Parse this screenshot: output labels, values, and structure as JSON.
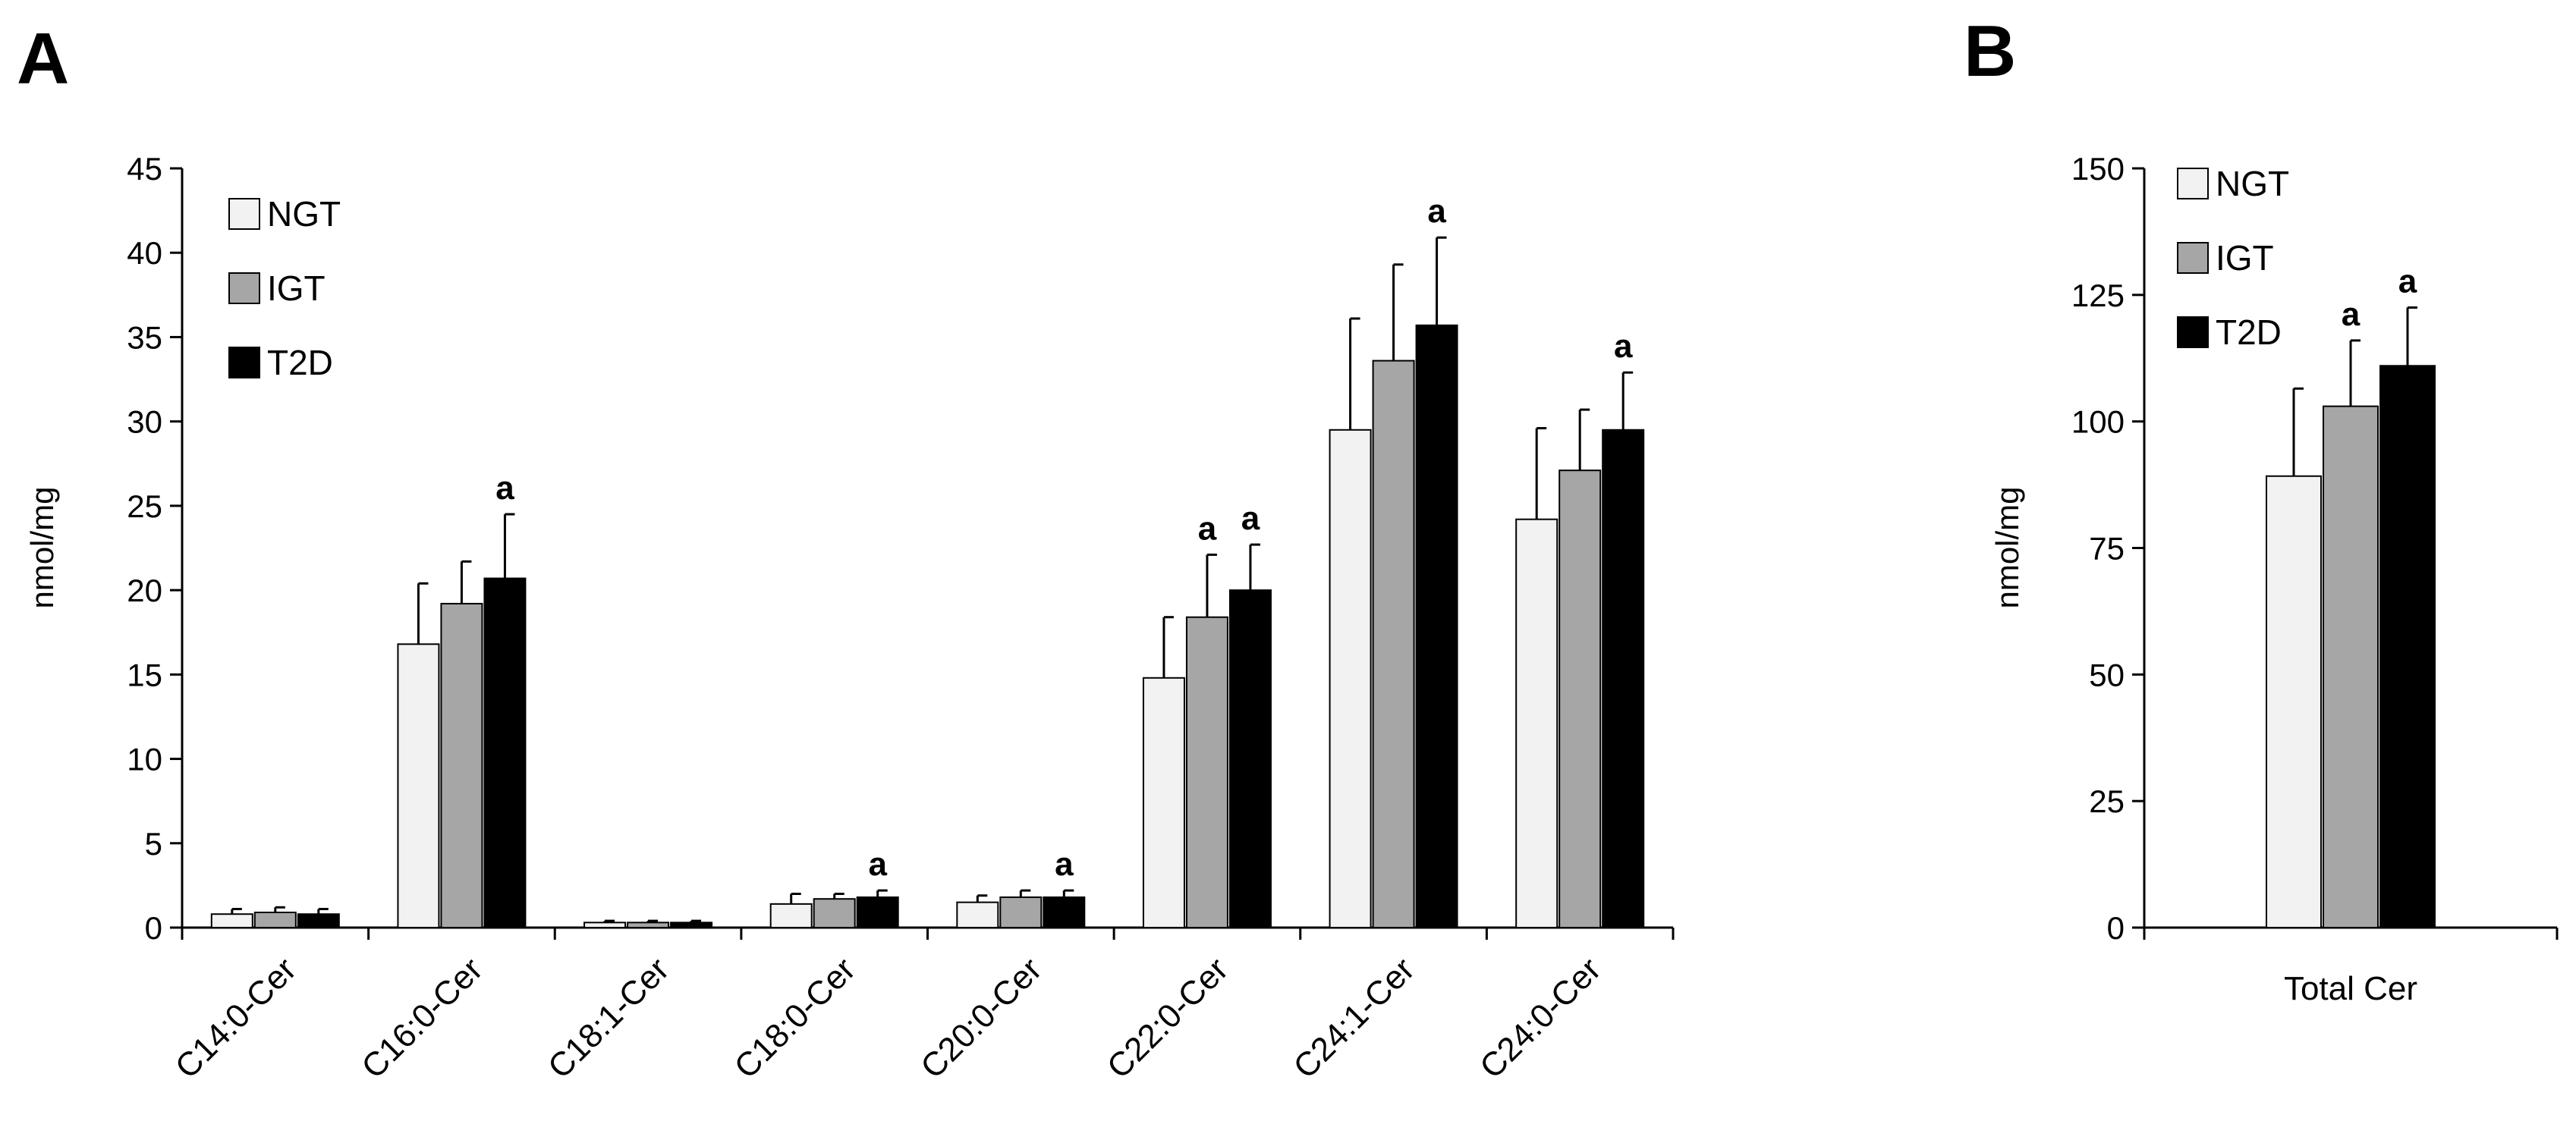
{
  "chart_data": [
    {
      "panel": "A",
      "type": "bar",
      "ylabel": "nmol/mg",
      "ylim": [
        0,
        45
      ],
      "yticks": [
        0,
        5,
        10,
        15,
        20,
        25,
        30,
        35,
        40,
        45
      ],
      "categories": [
        "C14:0-Cer",
        "C16:0-Cer",
        "C18:1-Cer",
        "C18:0-Cer",
        "C20:0-Cer",
        "C22:0-Cer",
        "C24:1-Cer",
        "C24:0-Cer"
      ],
      "series": [
        {
          "name": "NGT",
          "color": "#f2f2f2",
          "values": [
            0.8,
            16.8,
            0.3,
            1.4,
            1.5,
            14.8,
            29.5,
            24.2
          ],
          "errors": [
            0.3,
            3.6,
            0.1,
            0.6,
            0.4,
            3.6,
            6.6,
            5.4
          ],
          "sig": [
            "",
            "",
            "",
            "",
            "",
            "",
            "",
            ""
          ]
        },
        {
          "name": "IGT",
          "color": "#a6a6a6",
          "values": [
            0.9,
            19.2,
            0.3,
            1.7,
            1.8,
            18.4,
            33.6,
            27.1
          ],
          "errors": [
            0.3,
            2.5,
            0.1,
            0.3,
            0.4,
            3.7,
            5.7,
            3.6
          ],
          "sig": [
            "",
            "",
            "",
            "",
            "",
            "a",
            "",
            ""
          ]
        },
        {
          "name": "T2D",
          "color": "#000000",
          "values": [
            0.8,
            20.7,
            0.3,
            1.8,
            1.8,
            20.0,
            35.7,
            29.5
          ],
          "errors": [
            0.3,
            3.8,
            0.1,
            0.4,
            0.4,
            2.7,
            5.2,
            3.4
          ],
          "sig": [
            "",
            "a",
            "",
            "a",
            "a",
            "a",
            "a",
            "a"
          ]
        }
      ],
      "legend": "top-left",
      "grid": false
    },
    {
      "panel": "B",
      "type": "bar",
      "ylabel": "nmol/mg",
      "ylim": [
        0,
        150
      ],
      "yticks": [
        0,
        25,
        50,
        75,
        100,
        125,
        150
      ],
      "categories": [
        "Total Cer"
      ],
      "series": [
        {
          "name": "NGT",
          "color": "#f2f2f2",
          "values": [
            89.2
          ],
          "errors": [
            17.3
          ],
          "sig": [
            ""
          ]
        },
        {
          "name": "IGT",
          "color": "#a6a6a6",
          "values": [
            103.0
          ],
          "errors": [
            13.0
          ],
          "sig": [
            "a"
          ]
        },
        {
          "name": "T2D",
          "color": "#000000",
          "values": [
            111.0
          ],
          "errors": [
            11.5
          ],
          "sig": [
            "a"
          ]
        }
      ],
      "legend": "top-left",
      "grid": false
    }
  ]
}
